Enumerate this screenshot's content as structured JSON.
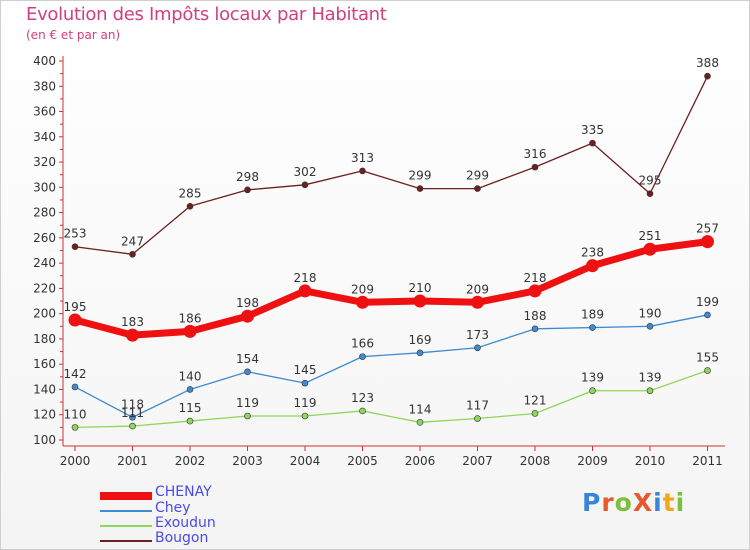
{
  "header": {
    "title": "Evolution des Impôts locaux par Habitant",
    "subtitle": "(en € et par an)"
  },
  "colors": {
    "title": "#d0407f",
    "axis": "#cc3333",
    "legend_text": "#4a4ae6"
  },
  "logo": {
    "text": "ProXiti",
    "letters": [
      "P",
      "r",
      "o",
      "X",
      "i",
      "t",
      "i"
    ],
    "letter_colors": [
      "#3a86d6",
      "#e8582c",
      "#7cbf3a",
      "#e8582c",
      "#3a86d6",
      "#f2a619",
      "#7cbf3a"
    ]
  },
  "chart_data": {
    "type": "line",
    "title": "Evolution des Impôts locaux par Habitant",
    "subtitle": "(en € et par an)",
    "xlabel": "",
    "ylabel": "",
    "categories": [
      "2000",
      "2001",
      "2002",
      "2003",
      "2004",
      "2005",
      "2006",
      "2007",
      "2008",
      "2009",
      "2010",
      "2011"
    ],
    "ylim": [
      100,
      400
    ],
    "yticks": [
      100,
      120,
      140,
      160,
      180,
      200,
      220,
      240,
      260,
      280,
      300,
      320,
      340,
      360,
      380,
      400
    ],
    "grid": false,
    "legend_position": "bottom-left",
    "series": [
      {
        "name": "CHENAY",
        "color": "#ee1111",
        "values": [
          195,
          183,
          186,
          198,
          218,
          209,
          210,
          209,
          218,
          238,
          251,
          257
        ]
      },
      {
        "name": "Chey",
        "color": "#3f8bd0",
        "values": [
          142,
          118,
          140,
          154,
          145,
          166,
          169,
          173,
          188,
          189,
          190,
          199
        ]
      },
      {
        "name": "Exoudun",
        "color": "#8fd65c",
        "values": [
          110,
          111,
          115,
          119,
          119,
          123,
          114,
          117,
          121,
          139,
          139,
          155
        ]
      },
      {
        "name": "Bougon",
        "color": "#6e1f1f",
        "values": [
          253,
          247,
          285,
          298,
          302,
          313,
          299,
          299,
          316,
          335,
          295,
          388
        ]
      }
    ]
  }
}
